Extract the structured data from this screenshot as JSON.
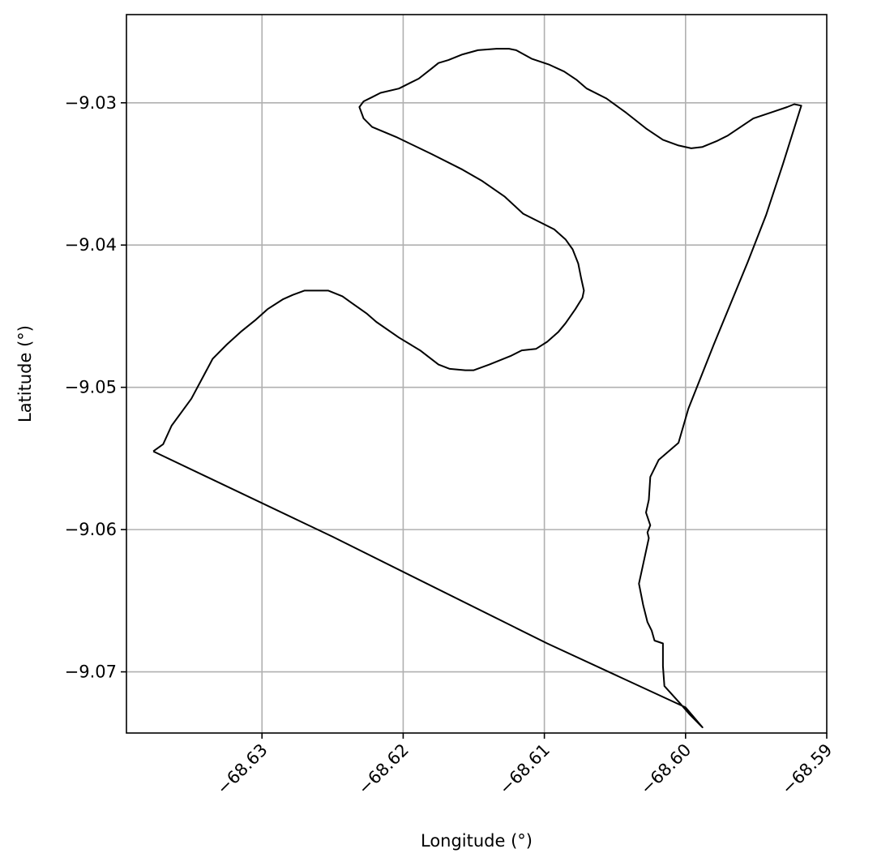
{
  "chart_data": {
    "type": "line",
    "xlabel": "Longitude (°)",
    "ylabel": "Latitude (°)",
    "xlim": [
      -68.6396,
      -68.59
    ],
    "ylim": [
      -9.0743,
      -9.0238
    ],
    "grid": true,
    "x_ticks": [
      -68.63,
      -68.62,
      -68.61,
      -68.6,
      -68.59
    ],
    "x_tick_labels": [
      "−68.63",
      "−68.62",
      "−68.61",
      "−68.60",
      "−68.59"
    ],
    "y_ticks": [
      -9.03,
      -9.04,
      -9.05,
      -9.06,
      -9.07
    ],
    "y_tick_labels": [
      "−9.03",
      "−9.04",
      "−9.05",
      "−9.06",
      "−9.07"
    ],
    "line_color": "#000000",
    "grid_color": "#b0b0b0",
    "series": [
      {
        "x": [
          -68.6377,
          -68.637,
          -68.6364,
          -68.635,
          -68.6343,
          -68.6335,
          -68.6325,
          -68.6315,
          -68.6305,
          -68.6296,
          -68.6285,
          -68.6278,
          -68.627,
          -68.6258,
          -68.6253,
          -68.6243,
          -68.6236,
          -68.6226,
          -68.6219,
          -68.6203,
          -68.6188,
          -68.6175,
          -68.6167,
          -68.6156,
          -68.615,
          -68.6139,
          -68.6124,
          -68.6116,
          -68.6106,
          -68.6098,
          -68.609,
          -68.6085,
          -68.6078,
          -68.6073,
          -68.6072,
          -68.6074,
          -68.6076,
          -68.608,
          -68.6085,
          -68.6093,
          -68.6101,
          -68.6115,
          -68.6128,
          -68.6144,
          -68.6158,
          -68.618,
          -68.6205,
          -68.6222,
          -68.6228,
          -68.6231,
          -68.6228,
          -68.6222,
          -68.6216,
          -68.6203,
          -68.6195,
          -68.6189,
          -68.618,
          -68.6175,
          -68.6168,
          -68.6158,
          -68.6147,
          -68.6134,
          -68.6125,
          -68.612,
          -68.6109,
          -68.6097,
          -68.6086,
          -68.6077,
          -68.607,
          -68.6056,
          -68.6042,
          -68.6028,
          -68.6016,
          -68.6005,
          -68.5996,
          -68.5988,
          -68.5978,
          -68.597,
          -68.5952,
          -68.5937,
          -68.5928,
          -68.5923,
          -68.5918,
          -68.5931,
          -68.5943,
          -68.5956,
          -68.598,
          -68.5998,
          -68.6005,
          -68.6019,
          -68.6025,
          -68.6026,
          -68.6028,
          -68.6025,
          -68.6027,
          -68.6026,
          -68.6033,
          -68.603,
          -68.6027,
          -68.6024,
          -68.6022,
          -68.6016,
          -68.6016,
          -68.6015,
          -68.6004,
          -68.5997,
          -68.599,
          -68.5988,
          -68.6,
          -68.6098,
          -68.625,
          -68.6377
        ],
        "y": [
          -9.0545,
          -9.054,
          -9.0527,
          -9.0508,
          -9.0495,
          -9.048,
          -9.047,
          -9.0461,
          -9.0453,
          -9.0445,
          -9.0438,
          -9.0435,
          -9.0432,
          -9.0432,
          -9.0432,
          -9.0436,
          -9.0441,
          -9.0448,
          -9.0454,
          -9.0465,
          -9.0474,
          -9.0484,
          -9.0487,
          -9.0488,
          -9.0488,
          -9.0484,
          -9.0478,
          -9.0474,
          -9.0473,
          -9.0468,
          -9.0461,
          -9.0455,
          -9.0445,
          -9.0437,
          -9.0432,
          -9.0423,
          -9.0413,
          -9.0403,
          -9.0396,
          -9.0389,
          -9.0385,
          -9.0378,
          -9.0366,
          -9.0355,
          -9.0347,
          -9.0336,
          -9.0324,
          -9.0317,
          -9.0311,
          -9.0303,
          -9.0299,
          -9.0296,
          -9.0293,
          -9.029,
          -9.0286,
          -9.0283,
          -9.0276,
          -9.0272,
          -9.027,
          -9.0266,
          -9.0263,
          -9.0262,
          -9.0262,
          -9.0263,
          -9.0269,
          -9.0273,
          -9.0278,
          -9.0284,
          -9.029,
          -9.0297,
          -9.0307,
          -9.0318,
          -9.0326,
          -9.033,
          -9.0332,
          -9.0331,
          -9.0327,
          -9.0323,
          -9.0311,
          -9.0306,
          -9.0303,
          -9.0301,
          -9.0302,
          -9.0343,
          -9.0379,
          -9.0412,
          -9.047,
          -9.0515,
          -9.0539,
          -9.0551,
          -9.0563,
          -9.0579,
          -9.0588,
          -9.0597,
          -9.0602,
          -9.0606,
          -9.0638,
          -9.0653,
          -9.0665,
          -9.0671,
          -9.0678,
          -9.068,
          -9.0696,
          -9.071,
          -9.0722,
          -9.073,
          -9.0737,
          -9.0739,
          -9.0725,
          -9.068,
          -9.0605,
          -9.0545
        ]
      }
    ]
  }
}
